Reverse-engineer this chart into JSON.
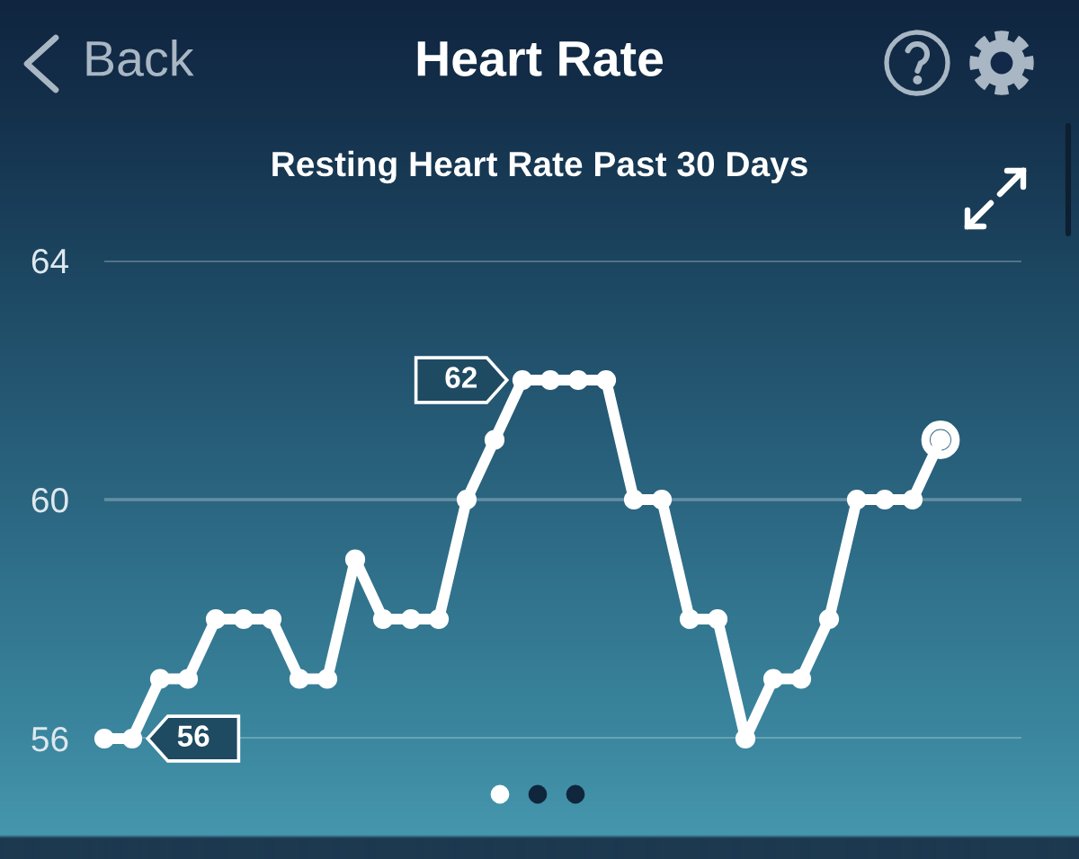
{
  "chart_data": {
    "type": "line",
    "title": "Heart Rate",
    "subtitle": "Resting Heart Rate Past 30 Days",
    "annotations": [
      "Back"
    ],
    "categories": [
      null,
      null,
      null,
      null,
      null,
      null,
      null,
      null,
      null,
      null,
      null,
      null,
      null,
      null,
      null,
      null,
      null,
      null,
      null,
      null,
      null,
      null,
      null,
      null,
      null,
      null,
      null,
      null,
      null,
      null,
      null
    ],
    "series": [
      {
        "color": "#ffffff",
        "values": [
          56,
          56,
          57,
          57,
          58,
          58,
          58,
          57,
          57,
          59,
          58,
          58,
          58,
          60,
          61,
          62,
          62,
          62,
          62,
          60,
          60,
          58,
          58,
          56,
          57,
          57,
          58,
          60,
          60,
          60,
          61
        ],
        "value_labels": [
          null,
          "56",
          null,
          null,
          null,
          null,
          null,
          null,
          null,
          null,
          null,
          null,
          null,
          null,
          null,
          "62",
          null,
          null,
          null,
          null,
          null,
          null,
          null,
          null,
          null,
          null,
          null,
          null,
          null,
          null,
          null
        ]
      }
    ],
    "ylim": [
      56,
      64
    ],
    "yticks": [
      56,
      60,
      64
    ],
    "grid": "y",
    "marker": "circle",
    "line_style": "solid"
  }
}
